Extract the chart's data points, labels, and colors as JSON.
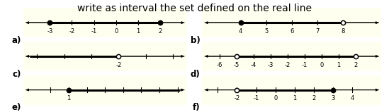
{
  "title": "write as interval the set defined on the real line",
  "title_fontsize": 10,
  "bg_color": "#fffff0",
  "panels": [
    {
      "label": "a)",
      "xlim": [
        -4.2,
        3.2
      ],
      "ticks": [
        -3,
        -2,
        -1,
        0,
        1,
        2
      ],
      "tick_labels": [
        "-3",
        "-2",
        "-1",
        "0",
        "1",
        "2"
      ],
      "left": {
        "x": -3,
        "open": false
      },
      "right": {
        "x": 2,
        "open": false
      },
      "left_inf": false,
      "right_inf": false
    },
    {
      "label": "b)",
      "xlim": [
        2.5,
        9.5
      ],
      "ticks": [
        4,
        5,
        6,
        7,
        8
      ],
      "tick_labels": [
        "4",
        "5",
        "6",
        "7",
        "8"
      ],
      "left": {
        "x": 4,
        "open": false
      },
      "right": {
        "x": 8,
        "open": true
      },
      "left_inf": false,
      "right_inf": false
    },
    {
      "label": "c)",
      "xlim": [
        -5.5,
        0.5
      ],
      "ticks": [
        -5,
        -4,
        -3,
        -2,
        -1,
        0
      ],
      "tick_labels": [
        "",
        "",
        "",
        "-2",
        "",
        ""
      ],
      "left": {
        "x": null,
        "open": false
      },
      "right": {
        "x": -2,
        "open": true
      },
      "left_inf": true,
      "right_inf": false
    },
    {
      "label": "d)",
      "xlim": [
        -7.0,
        3.5
      ],
      "ticks": [
        -6,
        -5,
        -4,
        -3,
        -2,
        -1,
        0,
        1,
        2
      ],
      "tick_labels": [
        "-6",
        "-5",
        "-4",
        "-3",
        "-2",
        "-1",
        "0",
        "1",
        "2"
      ],
      "left": {
        "x": -5,
        "open": true
      },
      "right": {
        "x": 2,
        "open": true
      },
      "left_inf": false,
      "right_inf": false
    },
    {
      "label": "e)",
      "xlim": [
        -1.5,
        7.5
      ],
      "ticks": [
        0,
        1,
        2,
        3,
        4,
        5,
        6,
        7
      ],
      "tick_labels": [
        "",
        "1",
        "",
        "",
        "",
        "",
        "",
        ""
      ],
      "left": {
        "x": 1,
        "open": false
      },
      "right": {
        "x": null,
        "open": false
      },
      "left_inf": false,
      "right_inf": true
    },
    {
      "label": "f)",
      "xlim": [
        -3.8,
        5.5
      ],
      "ticks": [
        -3,
        -2,
        -1,
        0,
        1,
        2,
        3,
        4
      ],
      "tick_labels": [
        "",
        "-2",
        "-1",
        "0",
        "1",
        "2",
        "3",
        "4"
      ],
      "left": {
        "x": -2,
        "open": true
      },
      "right": {
        "x": 3,
        "open": false
      },
      "left_inf": false,
      "right_inf": false
    }
  ]
}
